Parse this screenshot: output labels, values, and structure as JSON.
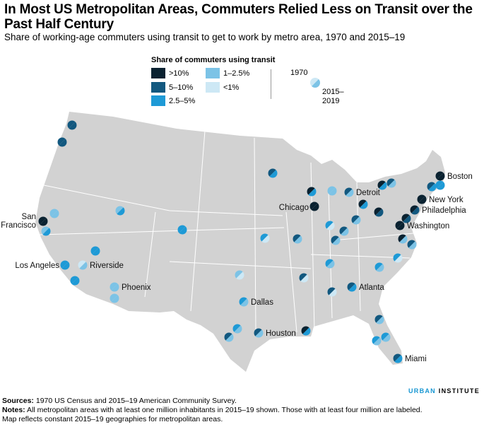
{
  "title": "In Most US Metropolitan Areas, Commuters Relied Less on Transit over the Past Half Century",
  "subtitle": "Share of working-age commuters using transit to get to work by metro area, 1970 and 2015–19",
  "legend": {
    "title": "Share of commuters using transit",
    "categories": [
      {
        "label": ">10%",
        "color": "#0a2231"
      },
      {
        "label": "5–10%",
        "color": "#12587f"
      },
      {
        "label": "2.5–5%",
        "color": "#1e9ad6"
      },
      {
        "label": "1–2.5%",
        "color": "#7cc3e6"
      },
      {
        "label": "<1%",
        "color": "#cde8f5"
      }
    ],
    "marker_top_label": "1970",
    "marker_bottom_label": "2015–\n2019",
    "marker_bottom_line1": "2015–",
    "marker_bottom_line2": "2019"
  },
  "map": {
    "land_color": "#d2d2d2",
    "border_color": "#ffffff",
    "metros": [
      {
        "label": "",
        "c1970": 1,
        "c2015": 1
      },
      {
        "label": "",
        "c1970": 1,
        "c2015": 1
      },
      {
        "label": "",
        "c1970": 3,
        "c2015": 3
      },
      {
        "label": "San Francisco",
        "c1970": 0,
        "c2015": 0
      },
      {
        "label": "",
        "c1970": 3,
        "c2015": 2
      },
      {
        "label": "Los Angeles",
        "c1970": 2,
        "c2015": 2
      },
      {
        "label": "Riverside",
        "c1970": 4,
        "c2015": 3
      },
      {
        "label": "",
        "c1970": 2,
        "c2015": 2
      },
      {
        "label": "",
        "c1970": 2,
        "c2015": 2
      },
      {
        "label": "Phoenix",
        "c1970": 3,
        "c2015": 3
      },
      {
        "label": "",
        "c1970": 3,
        "c2015": 3
      },
      {
        "label": "",
        "c1970": 3,
        "c2015": 2
      },
      {
        "label": "",
        "c1970": 2,
        "c2015": 2
      },
      {
        "label": "",
        "c1970": 1,
        "c2015": 2
      },
      {
        "label": "",
        "c1970": 2,
        "c2015": 4
      },
      {
        "label": "",
        "c1970": 3,
        "c2015": 4
      },
      {
        "label": "Dallas",
        "c1970": 2,
        "c2015": 3
      },
      {
        "label": "",
        "c1970": 2,
        "c2015": 3
      },
      {
        "label": "",
        "c1970": 1,
        "c2015": 3
      },
      {
        "label": "Houston",
        "c1970": 1,
        "c2015": 3
      },
      {
        "label": "",
        "c1970": 0,
        "c2015": 2
      },
      {
        "label": "",
        "c1970": 1,
        "c2015": 4
      },
      {
        "label": "",
        "c1970": 1,
        "c2015": 4
      },
      {
        "label": "Atlanta",
        "c1970": 1,
        "c2015": 2
      },
      {
        "label": "",
        "c1970": 1,
        "c2015": 3
      },
      {
        "label": "",
        "c1970": 2,
        "c2015": 3
      },
      {
        "label": "",
        "c1970": 2,
        "c2015": 3
      },
      {
        "label": "Miami",
        "c1970": 1,
        "c2015": 2
      },
      {
        "label": "",
        "c1970": 0,
        "c2015": 2
      },
      {
        "label": "",
        "c1970": 3,
        "c2015": 3
      },
      {
        "label": "Detroit",
        "c1970": 1,
        "c2015": 3
      },
      {
        "label": "Chicago",
        "c1970": 0,
        "c2015": 0
      },
      {
        "label": "",
        "c1970": 0,
        "c2015": 2
      },
      {
        "label": "",
        "c1970": 0,
        "c2015": 2
      },
      {
        "label": "",
        "c1970": 1,
        "c2015": 3
      },
      {
        "label": "Boston",
        "c1970": 0,
        "c2015": 0
      },
      {
        "label": "",
        "c1970": 1,
        "c2015": 2
      },
      {
        "label": "",
        "c1970": 2,
        "c2015": 2
      },
      {
        "label": "New York",
        "c1970": 0,
        "c2015": 0
      },
      {
        "label": "Philadelphia",
        "c1970": 0,
        "c2015": 1
      },
      {
        "label": "",
        "c1970": 0,
        "c2015": 1
      },
      {
        "label": "",
        "c1970": 0,
        "c2015": 1
      },
      {
        "label": "Washington",
        "c1970": 0,
        "c2015": 0
      },
      {
        "label": "",
        "c1970": 1,
        "c2015": 3
      },
      {
        "label": "",
        "c1970": 2,
        "c2015": 4
      },
      {
        "label": "",
        "c1970": 1,
        "c2015": 3
      },
      {
        "label": "",
        "c1970": 1,
        "c2015": 3
      },
      {
        "label": "",
        "c1970": 1,
        "c2015": 3
      },
      {
        "label": "",
        "c1970": 0,
        "c2015": 3
      },
      {
        "label": "",
        "c1970": 1,
        "c2015": 3
      },
      {
        "label": "",
        "c1970": 2,
        "c2015": 4
      },
      {
        "label": "",
        "c1970": 2,
        "c2015": 3
      },
      {
        "label": "",
        "c1970": 2,
        "c2015": 3
      }
    ]
  },
  "footer": {
    "sources_label": "Sources:",
    "sources_text": " 1970 US Census and 2015–19 American Community Survey.",
    "notes_label": "Notes:",
    "notes_text": " All metropolitan areas with at least one million inhabitants in 2015–19 shown. Those with at least four million are labeled. Map reflects constant 2015–19 geographies for metropolitan areas.",
    "brand_part1": "URBAN",
    "brand_part2": "INSTITUTE"
  }
}
